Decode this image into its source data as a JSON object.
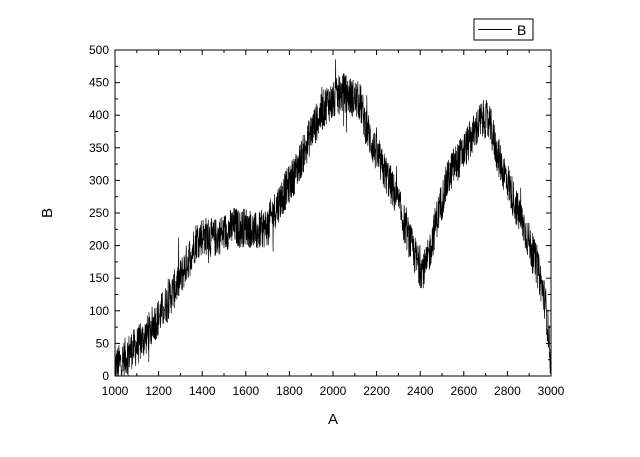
{
  "chart_data": {
    "type": "line",
    "title": "",
    "xlabel": "A",
    "ylabel": "B",
    "xlim": [
      1000,
      3000
    ],
    "ylim": [
      0,
      500
    ],
    "x_ticks": [
      1000,
      1200,
      1400,
      1600,
      1800,
      2000,
      2200,
      2400,
      2600,
      2800,
      3000
    ],
    "y_ticks": [
      0,
      50,
      100,
      150,
      200,
      250,
      300,
      350,
      400,
      450,
      500
    ],
    "x_minor_step": 100,
    "y_minor_step": 25,
    "grid": false,
    "legend": {
      "position": "top-right",
      "entries": [
        "B"
      ]
    },
    "line_color": "#000000",
    "series": [
      {
        "name": "B",
        "x_step": 25,
        "x": [
          1000,
          1025,
          1050,
          1075,
          1100,
          1125,
          1150,
          1175,
          1200,
          1225,
          1250,
          1275,
          1300,
          1325,
          1350,
          1375,
          1400,
          1425,
          1450,
          1475,
          1500,
          1525,
          1550,
          1575,
          1600,
          1625,
          1650,
          1675,
          1700,
          1725,
          1750,
          1775,
          1800,
          1825,
          1850,
          1875,
          1900,
          1925,
          1950,
          1975,
          2000,
          2025,
          2050,
          2075,
          2100,
          2125,
          2150,
          2175,
          2200,
          2225,
          2250,
          2275,
          2300,
          2325,
          2350,
          2375,
          2400,
          2425,
          2450,
          2475,
          2500,
          2525,
          2550,
          2575,
          2600,
          2625,
          2650,
          2675,
          2700,
          2725,
          2750,
          2775,
          2800,
          2825,
          2850,
          2875,
          2900,
          2925,
          2950,
          2975,
          2990,
          3000
        ],
        "values": [
          15,
          20,
          30,
          40,
          45,
          55,
          65,
          80,
          90,
          105,
          120,
          135,
          150,
          170,
          190,
          210,
          215,
          215,
          210,
          215,
          220,
          225,
          230,
          225,
          230,
          225,
          220,
          225,
          230,
          250,
          265,
          280,
          295,
          310,
          330,
          350,
          375,
          390,
          405,
          420,
          420,
          430,
          435,
          430,
          425,
          420,
          385,
          360,
          340,
          320,
          305,
          285,
          265,
          235,
          210,
          185,
          165,
          165,
          200,
          240,
          270,
          300,
          320,
          330,
          345,
          360,
          375,
          390,
          395,
          380,
          345,
          320,
          300,
          275,
          250,
          230,
          205,
          180,
          150,
          110,
          60,
          10
        ],
        "noise_amplitude": 30
      }
    ]
  }
}
